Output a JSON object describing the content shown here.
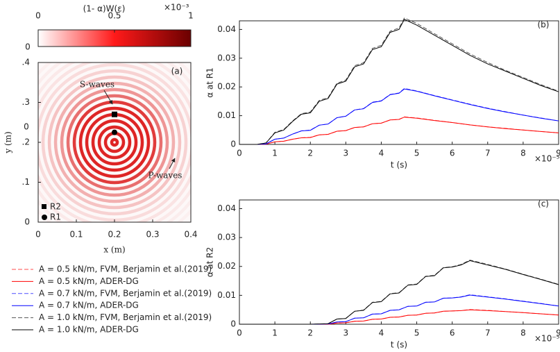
{
  "chart_data": [
    {
      "type": "field",
      "colorbar_title": "(1- α)W(ε)",
      "colorbar_exponent": "×10⁻³",
      "colorbar_lim": [
        0,
        1
      ],
      "colorbar_ticks": [
        0,
        0.5,
        1
      ],
      "colormap": [
        "#ffffff",
        "#ff1a1a",
        "#6b0000"
      ],
      "xlim": [
        0,
        0.4
      ],
      "ylim": [
        0,
        0.4
      ],
      "xticks": [
        0,
        0.1,
        0.2,
        0.3,
        0.4
      ],
      "yticks": [
        {
          "value": 0.4,
          "label": ".4"
        },
        {
          "value": 0.3,
          "label": ".3"
        },
        {
          "value": 0.2,
          "label": ".2"
        },
        {
          "value": 0.1,
          "label": ".1"
        },
        0
      ],
      "xlabel": "x (m)",
      "ylabel": "y (m)",
      "source": {
        "x": 0.2,
        "y": 0.2
      },
      "points": [
        {
          "name": "R2",
          "x": 0.2,
          "y": 0.27,
          "shape": "square"
        },
        {
          "name": "R1",
          "x": 0.2,
          "y": 0.225,
          "shape": "circle"
        }
      ],
      "annotations": [
        "S-waves",
        "P-waves",
        "(a)",
        "0",
        "0"
      ]
    },
    {
      "type": "line",
      "label": "(b)",
      "xlabel": "t (s)",
      "ylabel": "α at R1",
      "x_exponent": "×10⁻⁵",
      "xlim": [
        0,
        9
      ],
      "ylim": [
        0,
        0.043
      ],
      "xticks": [
        0,
        1,
        2,
        3,
        4,
        5,
        6,
        7,
        8,
        9
      ],
      "yticks": [
        0,
        0.01,
        0.02,
        0.03,
        0.04
      ],
      "x": [
        0,
        0.5,
        0.75,
        1,
        1.25,
        1.5,
        1.75,
        2,
        2.25,
        2.5,
        2.75,
        3,
        3.25,
        3.5,
        3.75,
        4,
        4.25,
        4.5,
        4.65,
        5,
        5.5,
        6,
        6.5,
        7,
        7.5,
        8,
        8.5,
        9
      ],
      "series": [
        {
          "name": "A = 0.5 kN/m, FVM, Berjamin et al.(2019)",
          "color": "#ff4d4d",
          "style": "dashed",
          "values": [
            0,
            0,
            0.0001,
            0.0009,
            0.0011,
            0.0018,
            0.0023,
            0.0025,
            0.0033,
            0.0035,
            0.0046,
            0.0048,
            0.0059,
            0.0061,
            0.0072,
            0.0074,
            0.0085,
            0.0087,
            0.0096,
            0.0092,
            0.0084,
            0.0076,
            0.0068,
            0.0061,
            0.0056,
            0.005,
            0.0045,
            0.004
          ]
        },
        {
          "name": "A = 0.5 kN/m, ADER-DG",
          "color": "#ff0000",
          "style": "solid",
          "values": [
            0,
            0,
            0.0001,
            0.0009,
            0.0011,
            0.0018,
            0.0023,
            0.0024,
            0.0033,
            0.0035,
            0.0046,
            0.0048,
            0.0059,
            0.0061,
            0.0072,
            0.0074,
            0.0085,
            0.0087,
            0.0095,
            0.0091,
            0.0083,
            0.0076,
            0.0068,
            0.0061,
            0.0055,
            0.005,
            0.0045,
            0.004
          ]
        },
        {
          "name": "A = 0.7 kN/m, FVM, Berjamin et al.(2019)",
          "color": "#4d4dff",
          "style": "dashed",
          "values": [
            0,
            0,
            0.0002,
            0.0018,
            0.0022,
            0.0036,
            0.0047,
            0.005,
            0.0067,
            0.0071,
            0.0093,
            0.0098,
            0.012,
            0.0125,
            0.0147,
            0.0152,
            0.0174,
            0.0179,
            0.0195,
            0.0186,
            0.017,
            0.0155,
            0.014,
            0.0126,
            0.0114,
            0.0102,
            0.0092,
            0.0082
          ]
        },
        {
          "name": "A = 0.7 kN/m, ADER-DG",
          "color": "#0000ff",
          "style": "solid",
          "values": [
            0,
            0,
            0.0002,
            0.0018,
            0.0022,
            0.0036,
            0.0047,
            0.0049,
            0.0067,
            0.0071,
            0.0093,
            0.0098,
            0.012,
            0.0124,
            0.0146,
            0.0151,
            0.0173,
            0.0178,
            0.0193,
            0.0185,
            0.0169,
            0.0154,
            0.0139,
            0.0125,
            0.0113,
            0.0102,
            0.0091,
            0.0082
          ]
        },
        {
          "name": "A = 1.0 kN/m, FVM, Berjamin et al.(2019)",
          "color": "#555555",
          "style": "dashed",
          "values": [
            0,
            0,
            0.0005,
            0.0042,
            0.0052,
            0.0082,
            0.0107,
            0.0113,
            0.0153,
            0.0163,
            0.0213,
            0.0224,
            0.0274,
            0.0284,
            0.0334,
            0.0345,
            0.0394,
            0.0405,
            0.044,
            0.0421,
            0.0385,
            0.035,
            0.0315,
            0.0285,
            0.0258,
            0.0233,
            0.0208,
            0.0185
          ]
        },
        {
          "name": "A = 1.0 kN/m, ADER-DG",
          "color": "#000000",
          "style": "solid",
          "values": [
            0,
            0,
            0.0005,
            0.004,
            0.005,
            0.008,
            0.0105,
            0.011,
            0.015,
            0.016,
            0.021,
            0.022,
            0.027,
            0.028,
            0.033,
            0.034,
            0.039,
            0.04,
            0.0435,
            0.0415,
            0.038,
            0.0345,
            0.031,
            0.028,
            0.0255,
            0.023,
            0.0205,
            0.0183
          ]
        }
      ]
    },
    {
      "type": "line",
      "label": "(c)",
      "xlabel": "t (s)",
      "ylabel": "α at R2",
      "x_exponent": "×10⁻⁵",
      "xlim": [
        0,
        9
      ],
      "ylim": [
        0,
        0.043
      ],
      "xticks": [
        0,
        1,
        2,
        3,
        4,
        5,
        6,
        7,
        8,
        9
      ],
      "yticks": [
        0,
        0.01,
        0.02,
        0.03,
        0.04
      ],
      "x": [
        0,
        2,
        2.5,
        2.75,
        3,
        3.25,
        3.5,
        3.75,
        4,
        4.25,
        4.5,
        4.75,
        5,
        5.25,
        5.5,
        5.75,
        6,
        6.25,
        6.5,
        7,
        7.5,
        8,
        8.5,
        9
      ],
      "series": [
        {
          "name": "A = 0.5 kN/m, FVM, Berjamin et al.(2019)",
          "color": "#ff4d4d",
          "style": "dashed",
          "values": [
            0,
            0,
            0,
            0.0004,
            0.0005,
            0.001,
            0.0011,
            0.0017,
            0.0018,
            0.0024,
            0.0025,
            0.0031,
            0.0032,
            0.0038,
            0.0039,
            0.0045,
            0.0046,
            0.0047,
            0.0051,
            0.0048,
            0.0044,
            0.004,
            0.0036,
            0.0032
          ]
        },
        {
          "name": "A = 0.5 kN/m, ADER-DG",
          "color": "#ff0000",
          "style": "solid",
          "values": [
            0,
            0,
            0,
            0.0004,
            0.0005,
            0.001,
            0.0011,
            0.0017,
            0.0018,
            0.0024,
            0.0025,
            0.0031,
            0.0032,
            0.0038,
            0.0039,
            0.0045,
            0.0046,
            0.0047,
            0.005,
            0.0047,
            0.0044,
            0.004,
            0.0036,
            0.0032
          ]
        },
        {
          "name": "A = 0.7 kN/m, FVM, Berjamin et al.(2019)",
          "color": "#4d4dff",
          "style": "dashed",
          "values": [
            0,
            0,
            0.0001,
            0.0008,
            0.0009,
            0.0021,
            0.0022,
            0.0035,
            0.0036,
            0.0048,
            0.005,
            0.0062,
            0.0063,
            0.0076,
            0.0077,
            0.009,
            0.0091,
            0.0095,
            0.0102,
            0.0095,
            0.0088,
            0.008,
            0.0072,
            0.0063
          ]
        },
        {
          "name": "A = 0.7 kN/m, ADER-DG",
          "color": "#0000ff",
          "style": "solid",
          "values": [
            0,
            0,
            0.0001,
            0.0008,
            0.0009,
            0.0021,
            0.0022,
            0.0035,
            0.0036,
            0.0048,
            0.005,
            0.0062,
            0.0063,
            0.0076,
            0.0077,
            0.009,
            0.0091,
            0.0094,
            0.0101,
            0.0094,
            0.0087,
            0.0079,
            0.0071,
            0.0063
          ]
        },
        {
          "name": "A = 1.0 kN/m, FVM, Berjamin et al.(2019)",
          "color": "#555555",
          "style": "dashed",
          "values": [
            0,
            0,
            0.0002,
            0.0018,
            0.002,
            0.0045,
            0.0049,
            0.0076,
            0.0079,
            0.0106,
            0.0109,
            0.0136,
            0.0139,
            0.0166,
            0.0169,
            0.0196,
            0.0199,
            0.0207,
            0.0222,
            0.0207,
            0.0191,
            0.0173,
            0.0156,
            0.0138
          ]
        },
        {
          "name": "A = 1.0 kN/m, ADER-DG",
          "color": "#000000",
          "style": "solid",
          "values": [
            0,
            0,
            0.0002,
            0.0018,
            0.002,
            0.0045,
            0.0048,
            0.0075,
            0.0078,
            0.0105,
            0.0108,
            0.0135,
            0.0138,
            0.0165,
            0.0168,
            0.0195,
            0.0198,
            0.0205,
            0.022,
            0.0205,
            0.019,
            0.0172,
            0.0155,
            0.0137
          ]
        }
      ]
    }
  ]
}
